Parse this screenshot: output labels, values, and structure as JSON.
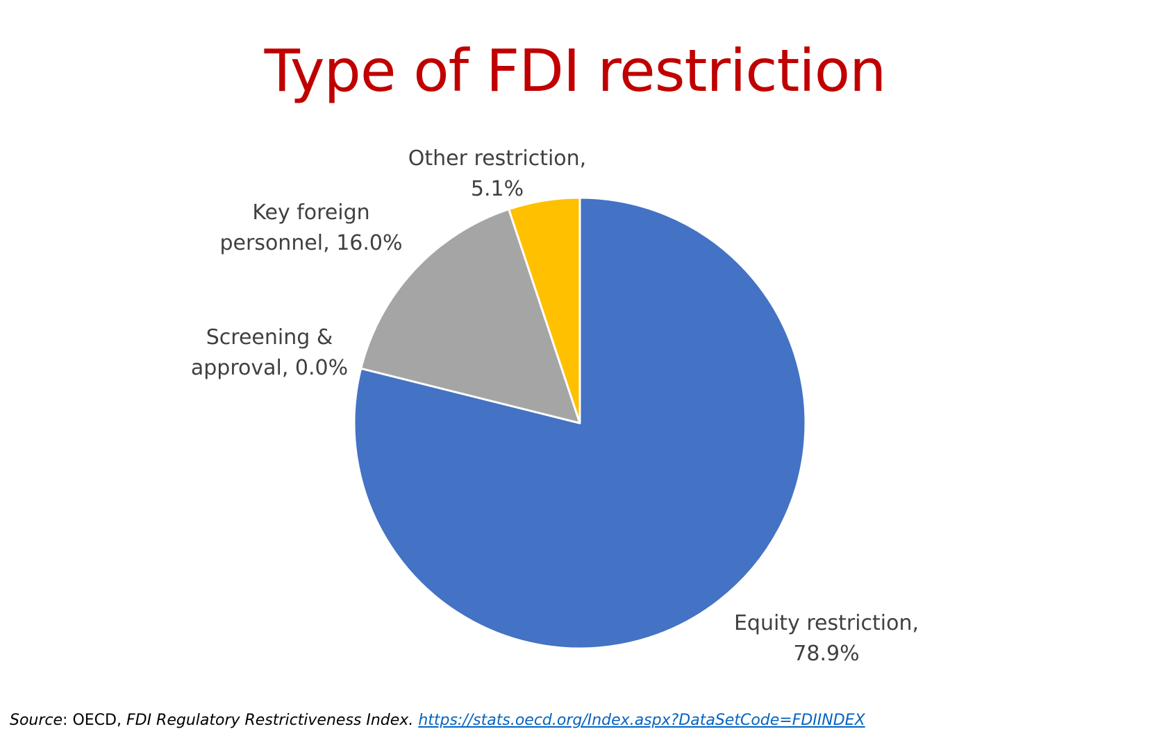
{
  "colors": {
    "title": "#c00000",
    "equity": "#4472c4",
    "screening": "#ed7d31",
    "key_personnel": "#a5a5a5",
    "other": "#ffc000",
    "label": "#404040",
    "link": "#0563c1"
  },
  "chart_data": {
    "type": "pie",
    "title": "Type of FDI restriction",
    "start_angle_deg": 0,
    "direction": "clockwise",
    "slices": [
      {
        "name": "Equity restriction",
        "value": 78.9,
        "label_lines": [
          "Equity restriction,",
          "78.9%"
        ],
        "color": "#4472c4"
      },
      {
        "name": "Screening & approval",
        "value": 0.0,
        "label_lines": [
          "Screening &",
          "approval, 0.0%"
        ],
        "color": "#ed7d31"
      },
      {
        "name": "Key foreign personnel",
        "value": 16.0,
        "label_lines": [
          "Key foreign",
          "personnel, 16.0%"
        ],
        "color": "#a5a5a5"
      },
      {
        "name": "Other restriction",
        "value": 5.1,
        "label_lines": [
          "Other restriction,",
          "5.1%"
        ],
        "color": "#ffc000"
      }
    ]
  },
  "source": {
    "label": "Source",
    "sep": ": OECD, ",
    "publication": "FDI Regulatory Restrictiveness Index.",
    "link_text": "https://stats.oecd.org/Index.aspx?DataSetCode=FDIINDEX"
  }
}
